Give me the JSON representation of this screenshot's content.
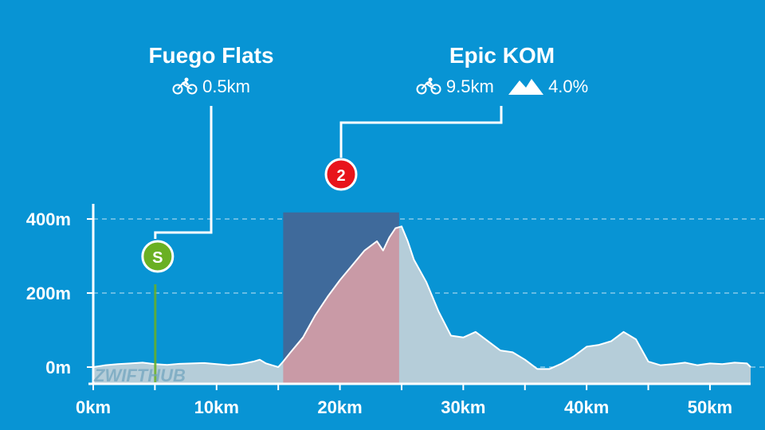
{
  "chart_data": {
    "type": "area",
    "xlabel": "",
    "ylabel": "",
    "xlim": [
      0,
      53.3
    ],
    "ylim": [
      -50,
      450
    ],
    "x_ticks": [
      0,
      10,
      20,
      30,
      40,
      50
    ],
    "x_tick_labels": [
      "0km",
      "10km",
      "20km",
      "30km",
      "40km",
      "50km"
    ],
    "y_ticks": [
      0,
      200,
      400
    ],
    "y_tick_labels": [
      "0m",
      "200m",
      "400m"
    ],
    "grid": "dashed horizontal",
    "series": [
      {
        "x": [
          0,
          1,
          2,
          3,
          4,
          5,
          6,
          7,
          8,
          9,
          10,
          11,
          12,
          13,
          13.5,
          14,
          14.5,
          15,
          15.4,
          16,
          17,
          18,
          19,
          20,
          21,
          22,
          23,
          23.5,
          24,
          24.5,
          25,
          25.5,
          26,
          27,
          28,
          29,
          30,
          31,
          32,
          33,
          34,
          35,
          36,
          37,
          38,
          39,
          40,
          41,
          42,
          43,
          44,
          45,
          46,
          47,
          48,
          49,
          50,
          51,
          52,
          53,
          53.3
        ],
        "values": [
          0,
          5,
          8,
          10,
          12,
          8,
          6,
          9,
          10,
          11,
          8,
          5,
          8,
          15,
          20,
          10,
          5,
          0,
          15,
          40,
          80,
          140,
          190,
          235,
          275,
          315,
          340,
          315,
          350,
          375,
          380,
          340,
          290,
          230,
          150,
          85,
          80,
          95,
          70,
          45,
          40,
          20,
          -5,
          -5,
          10,
          30,
          55,
          60,
          70,
          95,
          75,
          15,
          5,
          8,
          12,
          5,
          10,
          8,
          12,
          10,
          0
        ]
      }
    ],
    "highlight_range": [
      15.4,
      24.8
    ],
    "segments": [
      {
        "name": "Fuego Flats",
        "marker": "S",
        "color": "#6AB023",
        "at": 4.9,
        "distance": "0.5km"
      },
      {
        "name": "Epic KOM",
        "marker": "2",
        "color": "#E8141B",
        "at": 20.5,
        "distance": "9.5km",
        "grade": "4.0%"
      }
    ]
  },
  "watermark": "ZWIFTHUB"
}
